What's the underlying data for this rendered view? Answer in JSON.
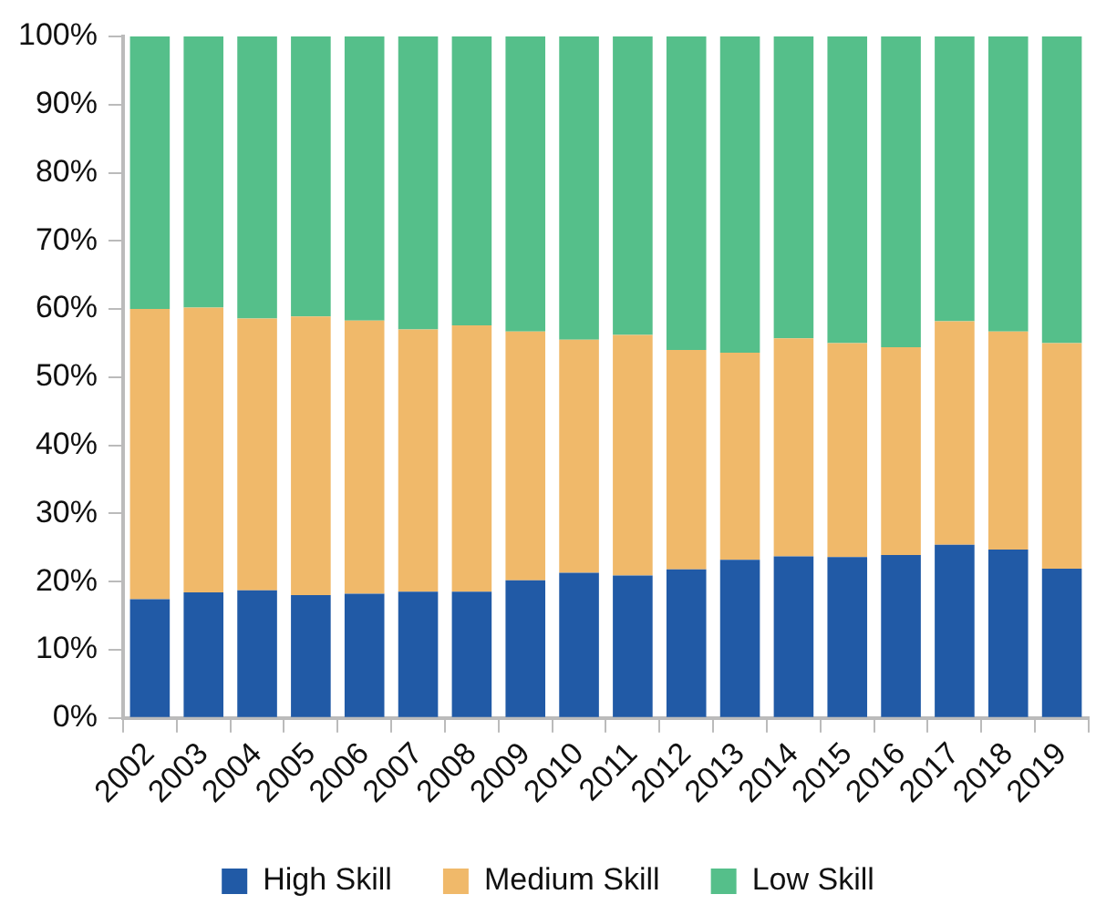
{
  "chart_data": {
    "type": "bar",
    "stacked": true,
    "categories": [
      "2002",
      "2003",
      "2004",
      "2005",
      "2006",
      "2007",
      "2008",
      "2009",
      "2010",
      "2011",
      "2012",
      "2013",
      "2014",
      "2015",
      "2016",
      "2017",
      "2018",
      "2019"
    ],
    "series": [
      {
        "name": "High Skill",
        "color": "#215aa6",
        "values": [
          17.4,
          18.4,
          18.7,
          18.0,
          18.2,
          18.5,
          18.5,
          20.2,
          21.3,
          20.9,
          21.8,
          23.2,
          23.7,
          23.6,
          23.9,
          25.4,
          24.7,
          21.9
        ]
      },
      {
        "name": "Medium Skill",
        "color": "#f0b96a",
        "values": [
          42.6,
          41.8,
          39.9,
          40.9,
          40.1,
          38.5,
          39.1,
          36.5,
          34.2,
          35.3,
          32.2,
          30.4,
          32.0,
          31.4,
          30.5,
          32.8,
          32.0,
          33.1
        ]
      },
      {
        "name": "Low Skill",
        "color": "#55bf8a",
        "values": [
          40.0,
          39.8,
          41.4,
          41.1,
          41.7,
          43.0,
          42.4,
          43.3,
          44.5,
          43.8,
          46.0,
          46.4,
          44.3,
          45.0,
          45.6,
          41.8,
          43.3,
          45.0
        ]
      }
    ],
    "ylim": [
      0,
      100
    ],
    "yticks": [
      {
        "value": 0,
        "label": "0%"
      },
      {
        "value": 10,
        "label": "10%"
      },
      {
        "value": 20,
        "label": "20%"
      },
      {
        "value": 30,
        "label": "30%"
      },
      {
        "value": 40,
        "label": "40%"
      },
      {
        "value": 50,
        "label": "50%"
      },
      {
        "value": 60,
        "label": "60%"
      },
      {
        "value": 70,
        "label": "70%"
      },
      {
        "value": 80,
        "label": "80%"
      },
      {
        "value": 90,
        "label": "90%"
      },
      {
        "value": 100,
        "label": "100%"
      }
    ],
    "grid": false,
    "legend": "bottom"
  }
}
